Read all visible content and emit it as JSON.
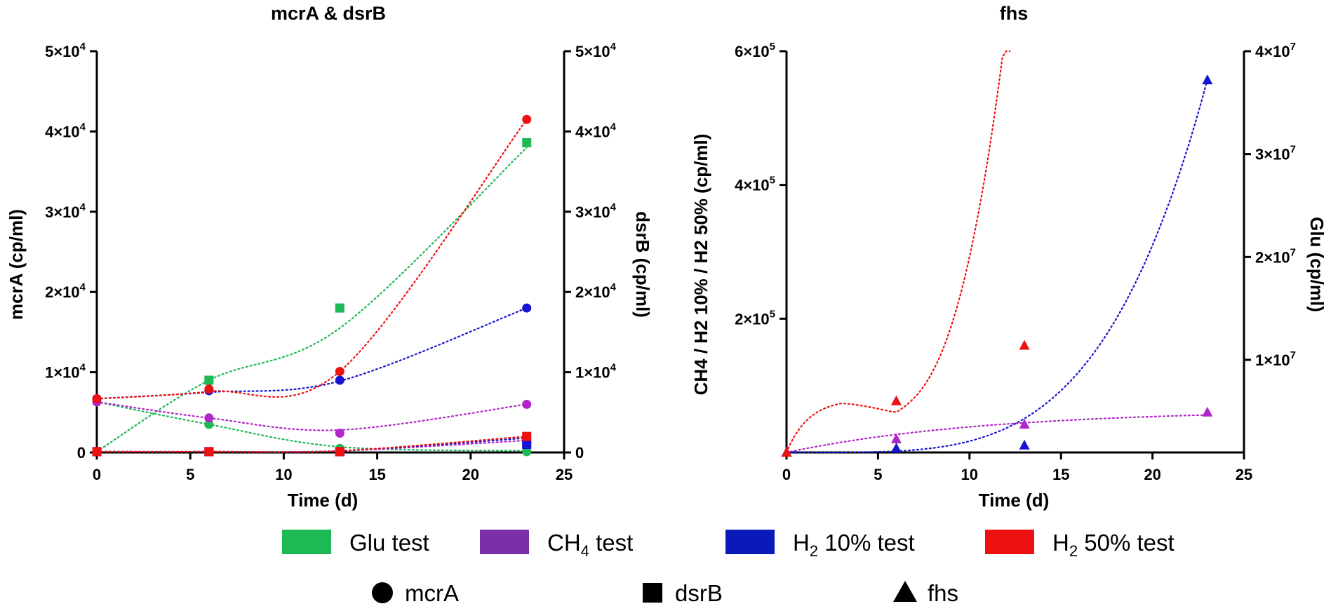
{
  "chart_data": [
    {
      "type": "scatter",
      "title": "mcrA & dsrB",
      "xlabel": "Time (d)",
      "ylabel": "mcrA (cp/ml)",
      "y2label": "dsrB (cp/ml)",
      "xlim": [
        0,
        25
      ],
      "ylim": [
        0,
        50000
      ],
      "y2lim": [
        0,
        50000
      ],
      "xticks": [
        "0",
        "5",
        "10",
        "15",
        "20",
        "25"
      ],
      "yticks": [
        {
          "base": "0",
          "exp": ""
        },
        {
          "base": "1×10",
          "exp": "4"
        },
        {
          "base": "2×10",
          "exp": "4"
        },
        {
          "base": "3×10",
          "exp": "4"
        },
        {
          "base": "4×10",
          "exp": "4"
        },
        {
          "base": "5×10",
          "exp": "4"
        }
      ],
      "y2ticks": [
        {
          "base": "0",
          "exp": ""
        },
        {
          "base": "1×10",
          "exp": "4"
        },
        {
          "base": "2×10",
          "exp": "4"
        },
        {
          "base": "3×10",
          "exp": "4"
        },
        {
          "base": "4×10",
          "exp": "4"
        },
        {
          "base": "5×10",
          "exp": "4"
        }
      ],
      "series": [
        {
          "name": "Glu test mcrA",
          "group": "Glu test",
          "gene": "mcrA",
          "marker": "circle",
          "color": "#1db954",
          "x": [
            0,
            6,
            13,
            23
          ],
          "y": [
            6300,
            3500,
            500,
            100
          ],
          "curve_y": [
            6300,
            3500,
            700,
            200
          ]
        },
        {
          "name": "Glu test dsrB",
          "group": "Glu test",
          "gene": "dsrB",
          "marker": "square",
          "color": "#1db954",
          "x": [
            0,
            6,
            13,
            23
          ],
          "y": [
            100,
            9000,
            18000,
            38600
          ],
          "curve_y": [
            100,
            9000,
            15500,
            38000
          ]
        },
        {
          "name": "CH4 test mcrA",
          "group": "CH4 test",
          "gene": "mcrA",
          "marker": "circle",
          "color": "#b026c8",
          "x": [
            0,
            6,
            13,
            23
          ],
          "y": [
            6300,
            4300,
            2400,
            6000
          ],
          "curve_y": [
            6300,
            4300,
            2800,
            6000
          ]
        },
        {
          "name": "CH4 test dsrB",
          "group": "CH4 test",
          "gene": "dsrB",
          "marker": "square",
          "color": "#b026c8",
          "x": [
            0,
            6,
            13,
            23
          ],
          "y": [
            100,
            100,
            100,
            1300
          ],
          "curve_y": [
            100,
            100,
            200,
            1500
          ]
        },
        {
          "name": "H2 10% test mcrA",
          "group": "H2 10% test",
          "gene": "mcrA",
          "marker": "circle",
          "color": "#1414d2",
          "x": [
            0,
            6,
            13,
            23
          ],
          "y": [
            6700,
            7700,
            9000,
            18000
          ],
          "curve_y": [
            6700,
            7500,
            8900,
            18000
          ]
        },
        {
          "name": "H2 10% test dsrB",
          "group": "H2 10% test",
          "gene": "dsrB",
          "marker": "square",
          "color": "#1414d2",
          "x": [
            0,
            6,
            13,
            23
          ],
          "y": [
            100,
            100,
            100,
            1000
          ],
          "curve_y": [
            100,
            100,
            200,
            1800
          ]
        },
        {
          "name": "H2 50% test mcrA",
          "group": "H2 50% test",
          "gene": "mcrA",
          "marker": "circle",
          "color": "#ee1111",
          "x": [
            0,
            6,
            13,
            23
          ],
          "y": [
            6700,
            7900,
            10100,
            41500
          ],
          "curve_y": [
            6700,
            7600,
            10100,
            41500
          ]
        },
        {
          "name": "H2 50% test dsrB",
          "group": "H2 50% test",
          "gene": "dsrB",
          "marker": "square",
          "color": "#ee1111",
          "x": [
            0,
            6,
            13,
            23
          ],
          "y": [
            100,
            100,
            100,
            2000
          ],
          "curve_y": [
            100,
            100,
            200,
            2000
          ]
        }
      ]
    },
    {
      "type": "scatter",
      "title": "fhs",
      "xlabel": "Time (d)",
      "ylabel": "CH4 / H2 10% / H2 50% (cp/ml)",
      "y2label": "Glu (cp/ml)",
      "xlim": [
        0,
        25
      ],
      "ylim": [
        0,
        600000
      ],
      "y2lim": [
        1000000,
        40000000
      ],
      "xticks": [
        "0",
        "5",
        "10",
        "15",
        "20",
        "25"
      ],
      "yticks": [
        {
          "value": 200000,
          "base": "2×10",
          "exp": "5"
        },
        {
          "value": 400000,
          "base": "4×10",
          "exp": "5"
        },
        {
          "value": 600000,
          "base": "6×10",
          "exp": "5"
        }
      ],
      "y2ticks": [
        {
          "value": 10000000,
          "base": "1×10",
          "exp": "7"
        },
        {
          "value": 20000000,
          "base": "2×10",
          "exp": "7"
        },
        {
          "value": 30000000,
          "base": "3×10",
          "exp": "7"
        },
        {
          "value": 40000000,
          "base": "4×10",
          "exp": "7"
        }
      ],
      "series": [
        {
          "name": "CH4 test fhs",
          "group": "CH4 test",
          "gene": "fhs",
          "marker": "triangle",
          "color": "#b026c8",
          "x": [
            0,
            6,
            13,
            23
          ],
          "y": [
            0,
            20000,
            42000,
            60000
          ]
        },
        {
          "name": "H2 10% test fhs",
          "group": "H2 10% test",
          "gene": "fhs",
          "marker": "triangle",
          "color": "#1414d2",
          "axis": "right",
          "x": [
            0,
            6,
            13,
            23
          ],
          "y": [
            1000000,
            1400000,
            1700000,
            37200000
          ]
        },
        {
          "name": "H2 50% test fhs",
          "group": "H2 50% test",
          "gene": "fhs",
          "marker": "triangle",
          "color": "#ee1111",
          "x": [
            0,
            6,
            13
          ],
          "y": [
            0,
            77000,
            160000
          ]
        }
      ]
    }
  ],
  "legend": {
    "groups": [
      {
        "main": "Glu test",
        "pre": "Glu test",
        "sub": "",
        "post": "",
        "color": "#1db954"
      },
      {
        "main": "CH4 test",
        "pre": "CH",
        "sub": "4",
        "post": " test",
        "color": "#7b2fa8"
      },
      {
        "main": "H2 10% test",
        "pre": "H",
        "sub": "2",
        "post": " 10% test",
        "color": "#0a1ab8"
      },
      {
        "main": "H2 50% test",
        "pre": "H",
        "sub": "2",
        "post": " 50% test",
        "color": "#ee1111"
      }
    ],
    "markers": [
      {
        "label": "mcrA",
        "shape": "circle"
      },
      {
        "label": "dsrB",
        "shape": "square"
      },
      {
        "label": "fhs",
        "shape": "triangle"
      }
    ]
  }
}
